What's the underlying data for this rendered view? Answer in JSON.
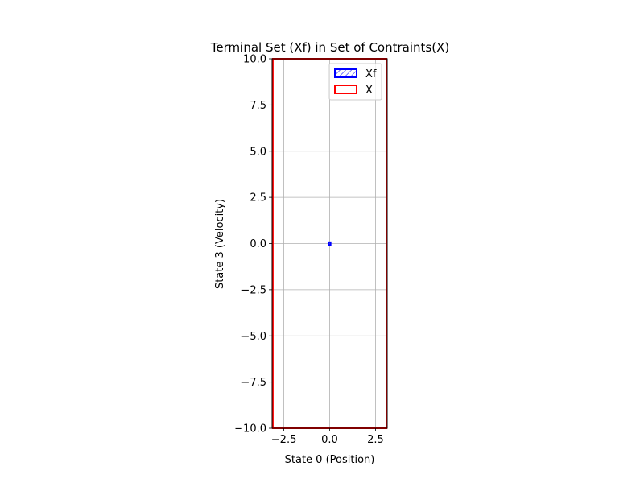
{
  "chart_data": {
    "type": "area",
    "title": "Terminal Set (Xf) in Set of Contraints(X)",
    "xlabel": "State 0 (Position)",
    "ylabel": "State 3 (Velocity)",
    "xlim": [
      -3.14,
      3.14
    ],
    "ylim": [
      -10,
      10
    ],
    "xticks": [
      -2.5,
      0.0,
      2.5
    ],
    "xtick_labels": [
      "−2.5",
      "0.0",
      "2.5"
    ],
    "yticks": [
      -10.0,
      -7.5,
      -5.0,
      -2.5,
      0.0,
      2.5,
      5.0,
      7.5,
      10.0
    ],
    "ytick_labels": [
      "−10.0",
      "−7.5",
      "−5.0",
      "−2.5",
      "0.0",
      "2.5",
      "5.0",
      "7.5",
      "10.0"
    ],
    "grid": true,
    "legend_position": "top-right",
    "series": [
      {
        "name": "Xf",
        "color": "#0000ff",
        "hatch": "diagonal",
        "polygon": [
          [
            -0.05,
            -0.07
          ],
          [
            0.05,
            -0.07
          ],
          [
            0.05,
            0.07
          ],
          [
            -0.05,
            0.07
          ]
        ]
      },
      {
        "name": "X",
        "color": "#ff0000",
        "polygon": [
          [
            -3.1,
            -10
          ],
          [
            3.1,
            -10
          ],
          [
            3.1,
            10
          ],
          [
            -3.1,
            10
          ]
        ]
      }
    ]
  }
}
